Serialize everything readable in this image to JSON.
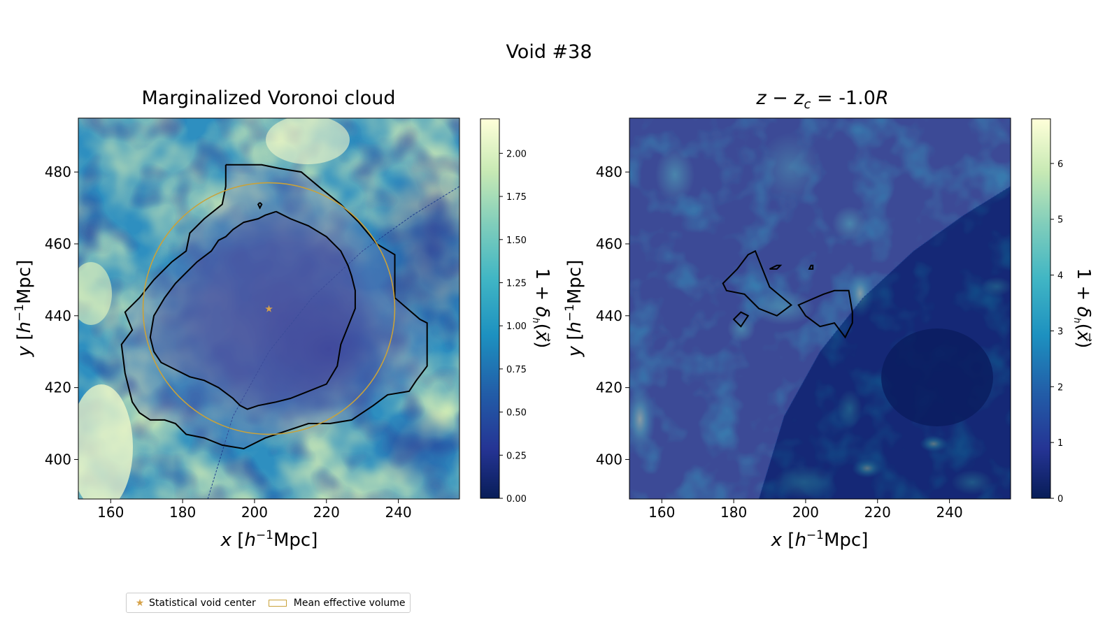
{
  "figure": {
    "suptitle": "Void #38",
    "legend": {
      "center_label": "Statistical void center",
      "volume_label": "Mean effective volume"
    }
  },
  "colors": {
    "void_center": "#d6a249",
    "effective_volume": "#c9a23a",
    "contour": "#000000",
    "cmap": [
      "#081d58",
      "#253494",
      "#225ea8",
      "#1d91c0",
      "#41b6c4",
      "#7fcdbb",
      "#c7e9b4",
      "#ffffd9"
    ]
  },
  "chart_data": [
    {
      "type": "heatmap",
      "title": "Marginalized Voronoi cloud",
      "xlabel": "x [h⁻¹Mpc]",
      "ylabel": "y [h⁻¹Mpc]",
      "xlim": [
        151,
        257
      ],
      "ylim": [
        389,
        495
      ],
      "xticks": [
        160,
        180,
        200,
        220,
        240
      ],
      "yticks": [
        400,
        420,
        440,
        460,
        480
      ],
      "colorbar": {
        "label": "1 + δh(x⃗)",
        "range": [
          0,
          2.2
        ],
        "ticks": [
          "0.00",
          "0.25",
          "0.50",
          "0.75",
          "1.00",
          "1.25",
          "1.50",
          "1.75",
          "2.00"
        ]
      },
      "void_center": [
        204,
        442
      ],
      "effective_radius": 35,
      "outer_contour": [
        [
          192,
          482
        ],
        [
          202,
          482
        ],
        [
          207,
          481
        ],
        [
          213,
          480
        ],
        [
          219,
          475
        ],
        [
          224,
          471
        ],
        [
          229,
          466
        ],
        [
          234,
          460
        ],
        [
          239,
          457
        ],
        [
          239,
          445
        ],
        [
          246,
          439
        ],
        [
          248,
          438
        ],
        [
          248,
          426
        ],
        [
          245,
          422
        ],
        [
          243,
          419
        ],
        [
          237,
          418
        ],
        [
          233,
          415
        ],
        [
          227,
          411
        ],
        [
          221,
          410
        ],
        [
          215,
          410
        ],
        [
          209,
          408
        ],
        [
          203,
          406
        ],
        [
          197,
          403
        ],
        [
          191,
          404
        ],
        [
          186,
          406
        ],
        [
          181,
          407
        ],
        [
          178,
          410
        ],
        [
          175,
          411
        ],
        [
          171,
          411
        ],
        [
          168,
          413
        ],
        [
          166,
          416
        ],
        [
          164,
          424
        ],
        [
          163,
          432
        ],
        [
          166,
          436
        ],
        [
          164,
          441
        ],
        [
          168,
          445
        ],
        [
          172,
          450
        ],
        [
          177,
          455
        ],
        [
          181,
          458
        ],
        [
          182,
          463
        ],
        [
          186,
          467
        ],
        [
          191,
          471
        ],
        [
          192,
          476
        ],
        [
          192,
          482
        ]
      ],
      "inner_contour": [
        [
          206,
          469
        ],
        [
          210,
          467
        ],
        [
          215,
          465
        ],
        [
          220,
          462
        ],
        [
          224,
          458
        ],
        [
          226,
          454
        ],
        [
          227,
          451
        ],
        [
          228,
          447
        ],
        [
          228,
          442
        ],
        [
          226,
          437
        ],
        [
          224,
          432
        ],
        [
          223,
          426
        ],
        [
          220,
          421
        ],
        [
          215,
          419
        ],
        [
          210,
          417
        ],
        [
          206,
          416
        ],
        [
          201,
          415
        ],
        [
          198,
          414
        ],
        [
          196,
          415
        ],
        [
          194,
          417
        ],
        [
          190,
          420
        ],
        [
          186,
          422
        ],
        [
          182,
          423
        ],
        [
          178,
          425
        ],
        [
          174,
          427
        ],
        [
          172,
          430
        ],
        [
          171,
          434
        ],
        [
          172,
          440
        ],
        [
          175,
          445
        ],
        [
          178,
          449
        ],
        [
          181,
          452
        ],
        [
          184,
          455
        ],
        [
          188,
          458
        ],
        [
          190,
          461
        ],
        [
          192,
          462
        ],
        [
          194,
          464
        ],
        [
          197,
          466
        ],
        [
          201,
          467
        ],
        [
          203,
          468
        ],
        [
          206,
          469
        ]
      ],
      "small_contour": [
        [
          201.5,
          471.5
        ],
        [
          202,
          471
        ],
        [
          201.5,
          470
        ],
        [
          201,
          471
        ],
        [
          201.5,
          471.5
        ]
      ],
      "boundary_arc": [
        [
          187,
          389
        ],
        [
          194,
          412
        ],
        [
          204,
          430
        ],
        [
          216,
          445
        ],
        [
          230,
          458
        ],
        [
          244,
          468
        ],
        [
          257,
          476
        ]
      ]
    },
    {
      "type": "heatmap",
      "title": "z − z_c = -1.0R",
      "xlabel": "x [h⁻¹Mpc]",
      "ylabel": "y [h⁻¹Mpc]",
      "xlim": [
        151,
        257
      ],
      "ylim": [
        389,
        495
      ],
      "xticks": [
        160,
        180,
        200,
        220,
        240
      ],
      "yticks": [
        400,
        420,
        440,
        460,
        480
      ],
      "colorbar": {
        "label": "1 + δh(x⃗)",
        "range": [
          0,
          6.8
        ],
        "ticks": [
          "0",
          "1",
          "2",
          "3",
          "4",
          "5",
          "6"
        ]
      },
      "contours": [
        [
          [
            186,
            458
          ],
          [
            184,
            457
          ],
          [
            181,
            453
          ],
          [
            177,
            449
          ],
          [
            178,
            447
          ],
          [
            183,
            446
          ],
          [
            187,
            442
          ],
          [
            192,
            440
          ],
          [
            196,
            443
          ],
          [
            190,
            448
          ],
          [
            186,
            458
          ]
        ],
        [
          [
            205,
            446
          ],
          [
            208,
            447
          ],
          [
            212,
            447
          ],
          [
            213,
            441
          ],
          [
            213,
            438
          ],
          [
            211,
            434
          ],
          [
            208,
            438
          ],
          [
            204,
            437
          ],
          [
            200,
            440
          ],
          [
            198,
            443
          ],
          [
            205,
            446
          ]
        ],
        [
          [
            182,
            441
          ],
          [
            180,
            439
          ],
          [
            182,
            437
          ],
          [
            184,
            440
          ],
          [
            182,
            441
          ]
        ],
        [
          [
            193,
            454
          ],
          [
            192,
            453
          ],
          [
            190,
            453
          ],
          [
            192,
            454
          ],
          [
            193,
            454
          ]
        ],
        [
          [
            202,
            454
          ],
          [
            202,
            453
          ],
          [
            201,
            453
          ],
          [
            201.5,
            454
          ],
          [
            202,
            454
          ]
        ]
      ],
      "boundary_arc": [
        [
          187,
          389
        ],
        [
          194,
          412
        ],
        [
          204,
          430
        ],
        [
          216,
          445
        ],
        [
          230,
          458
        ],
        [
          244,
          468
        ],
        [
          257,
          476
        ]
      ]
    }
  ]
}
